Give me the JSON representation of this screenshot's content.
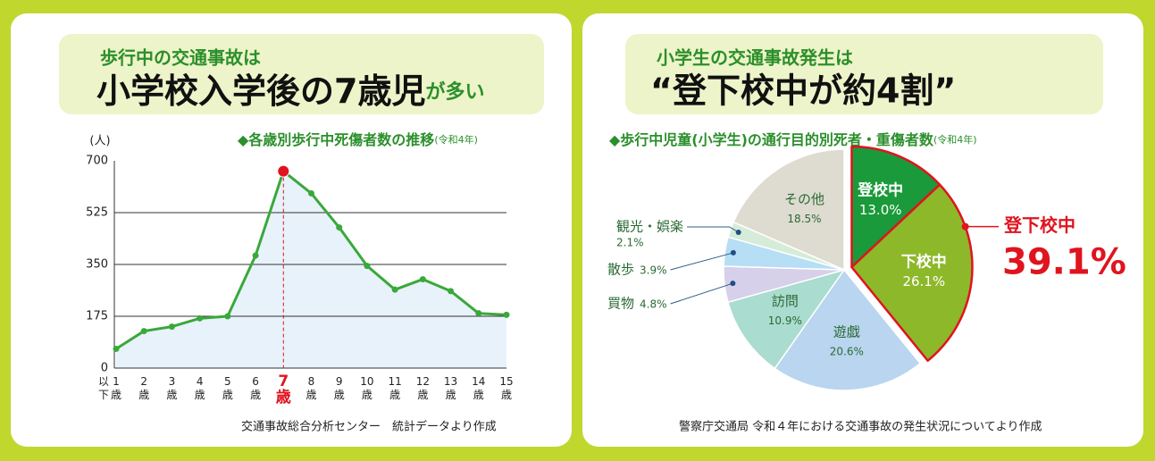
{
  "chart_data": [
    {
      "type": "line",
      "heading": "歩行中の交通事故は",
      "headline": "小学校入学後の7歳児",
      "headline_suffix": "が多い",
      "title": "◆各歳別歩行中死傷者数の推移",
      "title_note": "(令和4年)",
      "y_label": "(人)",
      "source": "交通事故総合分析センター　統計データより作成",
      "categories": [
        "1歳以下",
        "2歳",
        "3歳",
        "4歳",
        "5歳",
        "6歳",
        "7歳",
        "8歳",
        "9歳",
        "10歳",
        "11歳",
        "12歳",
        "13歳",
        "14歳",
        "15歳"
      ],
      "values": [
        65,
        125,
        140,
        168,
        175,
        380,
        665,
        590,
        475,
        345,
        265,
        300,
        260,
        185,
        180
      ],
      "color": "#3aa83a",
      "fill": "#e8f2fa",
      "highlight_index": 6,
      "highlight_color": "#e0141e",
      "ylim": [
        0,
        700
      ],
      "yticks": [
        0,
        175,
        350,
        525,
        700
      ],
      "grid": true
    },
    {
      "type": "pie",
      "heading": "小学生の交通事故発生は",
      "headline": "“登下校中が約4割”",
      "title": "◆歩行中児童(小学生)の通行目的別死者・重傷者数",
      "title_note": "(令和4年)",
      "source": "警察庁交通局 令和４年における交通事故の発生状況についてより作成",
      "categories": [
        "登校中",
        "下校中",
        "遊戯",
        "訪問",
        "買物",
        "散歩",
        "観光・娯楽",
        "その他"
      ],
      "values": [
        13.0,
        26.1,
        20.6,
        10.9,
        4.8,
        3.9,
        2.1,
        18.5
      ],
      "value_labels": [
        "13.0%",
        "26.1%",
        "20.6%",
        "10.9%",
        "4.8%",
        "3.9%",
        "2.1%",
        "18.5%"
      ],
      "colors": [
        "#1a9a3a",
        "#8db82a",
        "#b9d5ef",
        "#aadccf",
        "#d6d0ea",
        "#b6def5",
        "#d6ecd9",
        "#dedbd0"
      ],
      "highlight_indices": [
        0,
        1
      ],
      "highlight_color": "#e0141e",
      "annotation": [
        "登下校中",
        "39.1%"
      ]
    }
  ]
}
